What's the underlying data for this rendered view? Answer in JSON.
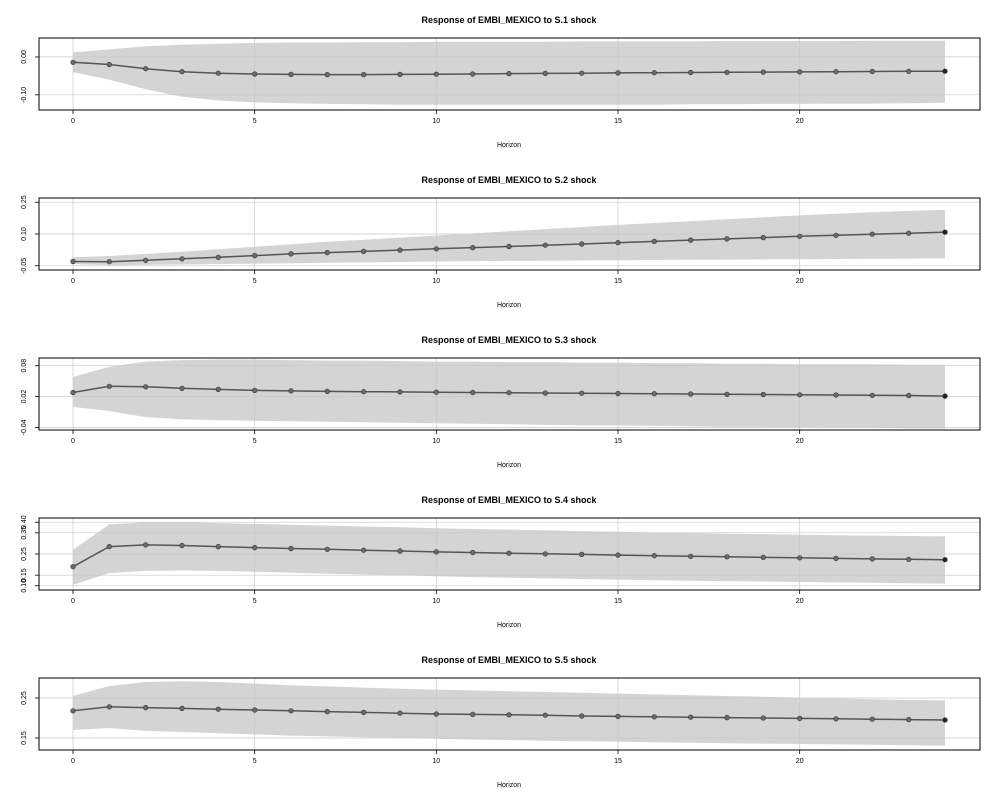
{
  "style": {
    "band_color": "#d4d4d4",
    "line_color": "#555555",
    "point_fill": "#6b6b6b",
    "last_point_fill": "#222222",
    "grid_color": "#c8c8c8",
    "frame_color": "#000000"
  },
  "chart_data": [
    {
      "type": "line",
      "title": "Response of EMBI_MEXICO to S.1 shock",
      "xlabel": "Horizon",
      "ylabel": "",
      "grid": true,
      "xlim": [
        0,
        24
      ],
      "ylim": [
        -0.14,
        0.05
      ],
      "xticks": [
        0,
        5,
        10,
        15,
        20
      ],
      "xtick_labels": [
        "0",
        "5",
        "10",
        "15",
        "20"
      ],
      "yticks": [
        -0.1,
        0.0
      ],
      "ytick_labels": [
        "-0.10",
        "0.00"
      ],
      "x": [
        0,
        1,
        2,
        3,
        4,
        5,
        6,
        7,
        8,
        9,
        10,
        11,
        12,
        13,
        14,
        15,
        16,
        17,
        18,
        19,
        20,
        21,
        22,
        23,
        24
      ],
      "series": [
        {
          "values": [
            -0.014,
            -0.02,
            -0.031,
            -0.039,
            -0.043,
            -0.045,
            -0.046,
            -0.0465,
            -0.0465,
            -0.046,
            -0.0455,
            -0.045,
            -0.044,
            -0.0435,
            -0.043,
            -0.042,
            -0.0415,
            -0.041,
            -0.0405,
            -0.04,
            -0.0395,
            -0.039,
            -0.0385,
            -0.038,
            -0.0375
          ],
          "lower": [
            -0.04,
            -0.06,
            -0.085,
            -0.105,
            -0.115,
            -0.12,
            -0.122,
            -0.124,
            -0.125,
            -0.126,
            -0.126,
            -0.126,
            -0.126,
            -0.126,
            -0.126,
            -0.126,
            -0.126,
            -0.125,
            -0.125,
            -0.124,
            -0.124,
            -0.123,
            -0.123,
            -0.122,
            -0.121
          ],
          "upper": [
            0.012,
            0.02,
            0.028,
            0.032,
            0.035,
            0.037,
            0.038,
            0.038,
            0.039,
            0.039,
            0.04,
            0.04,
            0.04,
            0.04,
            0.041,
            0.041,
            0.041,
            0.041,
            0.042,
            0.042,
            0.042,
            0.042,
            0.043,
            0.043,
            0.043
          ]
        }
      ]
    },
    {
      "type": "line",
      "title": "Response of EMBI_MEXICO to S.2 shock",
      "xlabel": "Horizon",
      "ylabel": "",
      "grid": true,
      "xlim": [
        0,
        24
      ],
      "ylim": [
        -0.07,
        0.27
      ],
      "xticks": [
        0,
        5,
        10,
        15,
        20
      ],
      "xtick_labels": [
        "0",
        "5",
        "10",
        "15",
        "20"
      ],
      "yticks": [
        -0.05,
        0.1,
        0.25
      ],
      "ytick_labels": [
        "-0.05",
        "0.10",
        "0.25"
      ],
      "x": [
        0,
        1,
        2,
        3,
        4,
        5,
        6,
        7,
        8,
        9,
        10,
        11,
        12,
        13,
        14,
        15,
        16,
        17,
        18,
        19,
        20,
        21,
        22,
        23,
        24
      ],
      "series": [
        {
          "values": [
            -0.03,
            -0.031,
            -0.024,
            -0.017,
            -0.01,
            -0.002,
            0.006,
            0.012,
            0.018,
            0.024,
            0.03,
            0.036,
            0.041,
            0.047,
            0.053,
            0.059,
            0.065,
            0.071,
            0.077,
            0.083,
            0.089,
            0.094,
            0.099,
            0.104,
            0.109
          ],
          "lower": [
            -0.042,
            -0.048,
            -0.046,
            -0.044,
            -0.042,
            -0.04,
            -0.038,
            -0.036,
            -0.034,
            -0.032,
            -0.03,
            -0.028,
            -0.027,
            -0.026,
            -0.025,
            -0.024,
            -0.023,
            -0.022,
            -0.021,
            -0.02,
            -0.019,
            -0.018,
            -0.017,
            -0.016,
            -0.015
          ],
          "upper": [
            -0.01,
            -0.004,
            0.006,
            0.016,
            0.028,
            0.04,
            0.052,
            0.063,
            0.073,
            0.083,
            0.093,
            0.103,
            0.113,
            0.123,
            0.133,
            0.143,
            0.152,
            0.161,
            0.17,
            0.179,
            0.188,
            0.196,
            0.203,
            0.209,
            0.214
          ]
        }
      ]
    },
    {
      "type": "line",
      "title": "Response of EMBI_MEXICO to S.3 shock",
      "xlabel": "Horizon",
      "ylabel": "",
      "grid": true,
      "xlim": [
        0,
        24
      ],
      "ylim": [
        -0.045,
        0.095
      ],
      "xticks": [
        0,
        5,
        10,
        15,
        20
      ],
      "xtick_labels": [
        "0",
        "5",
        "10",
        "15",
        "20"
      ],
      "yticks": [
        -0.04,
        0.02,
        0.08
      ],
      "ytick_labels": [
        "-0.04",
        "0.02",
        "0.08"
      ],
      "x": [
        0,
        1,
        2,
        3,
        4,
        5,
        6,
        7,
        8,
        9,
        10,
        11,
        12,
        13,
        14,
        15,
        16,
        17,
        18,
        19,
        20,
        21,
        22,
        23,
        24
      ],
      "series": [
        {
          "values": [
            0.028,
            0.04,
            0.039,
            0.036,
            0.034,
            0.032,
            0.031,
            0.03,
            0.0295,
            0.029,
            0.0285,
            0.028,
            0.0275,
            0.027,
            0.0265,
            0.026,
            0.0255,
            0.025,
            0.0245,
            0.024,
            0.0235,
            0.023,
            0.0225,
            0.022,
            0.021
          ],
          "lower": [
            0.0,
            -0.008,
            -0.02,
            -0.024,
            -0.026,
            -0.027,
            -0.028,
            -0.029,
            -0.03,
            -0.031,
            -0.032,
            -0.033,
            -0.034,
            -0.035,
            -0.036,
            -0.036,
            -0.037,
            -0.038,
            -0.039,
            -0.039,
            -0.04,
            -0.041,
            -0.041,
            -0.042,
            -0.042
          ],
          "upper": [
            0.058,
            0.078,
            0.088,
            0.091,
            0.092,
            0.092,
            0.091,
            0.09,
            0.09,
            0.089,
            0.088,
            0.088,
            0.087,
            0.087,
            0.086,
            0.086,
            0.085,
            0.085,
            0.084,
            0.084,
            0.083,
            0.083,
            0.083,
            0.082,
            0.082
          ]
        }
      ]
    },
    {
      "type": "line",
      "title": "Response of EMBI_MEXICO to S.4 shock",
      "xlabel": "Horizon",
      "ylabel": "",
      "grid": true,
      "xlim": [
        0,
        24
      ],
      "ylim": [
        0.08,
        0.42
      ],
      "xticks": [
        0,
        5,
        10,
        15,
        20
      ],
      "xtick_labels": [
        "0",
        "5",
        "10",
        "15",
        "20"
      ],
      "yticks": [
        0.1,
        0.15,
        0.25,
        0.35,
        0.4
      ],
      "ytick_labels": [
        "0.10",
        "0.15",
        "0.25",
        "0.35",
        "0.40"
      ],
      "x": [
        0,
        1,
        2,
        3,
        4,
        5,
        6,
        7,
        8,
        9,
        10,
        11,
        12,
        13,
        14,
        15,
        16,
        17,
        18,
        19,
        20,
        21,
        22,
        23,
        24
      ],
      "series": [
        {
          "values": [
            0.19,
            0.285,
            0.293,
            0.29,
            0.285,
            0.28,
            0.276,
            0.272,
            0.268,
            0.264,
            0.26,
            0.257,
            0.254,
            0.251,
            0.248,
            0.245,
            0.242,
            0.239,
            0.237,
            0.234,
            0.232,
            0.229,
            0.227,
            0.225,
            0.223
          ],
          "lower": [
            0.105,
            0.16,
            0.17,
            0.172,
            0.17,
            0.166,
            0.162,
            0.157,
            0.153,
            0.149,
            0.145,
            0.141,
            0.138,
            0.135,
            0.132,
            0.129,
            0.126,
            0.124,
            0.122,
            0.12,
            0.118,
            0.116,
            0.114,
            0.112,
            0.11
          ],
          "upper": [
            0.27,
            0.39,
            0.4,
            0.4,
            0.396,
            0.392,
            0.388,
            0.384,
            0.38,
            0.376,
            0.372,
            0.368,
            0.365,
            0.362,
            0.358,
            0.355,
            0.352,
            0.349,
            0.346,
            0.344,
            0.341,
            0.339,
            0.337,
            0.335,
            0.333
          ]
        }
      ]
    },
    {
      "type": "line",
      "title": "Response of EMBI_MEXICO to S.5 shock",
      "xlabel": "Horizon",
      "ylabel": "",
      "grid": true,
      "xlim": [
        0,
        24
      ],
      "ylim": [
        0.12,
        0.3
      ],
      "xticks": [
        0,
        5,
        10,
        15,
        20
      ],
      "xtick_labels": [
        "0",
        "5",
        "10",
        "15",
        "20"
      ],
      "yticks": [
        0.15,
        0.25
      ],
      "ytick_labels": [
        "0.15",
        "0.25"
      ],
      "x": [
        0,
        1,
        2,
        3,
        4,
        5,
        6,
        7,
        8,
        9,
        10,
        11,
        12,
        13,
        14,
        15,
        16,
        17,
        18,
        19,
        20,
        21,
        22,
        23,
        24
      ],
      "series": [
        {
          "values": [
            0.218,
            0.228,
            0.226,
            0.224,
            0.222,
            0.22,
            0.218,
            0.216,
            0.214,
            0.212,
            0.21,
            0.209,
            0.208,
            0.207,
            0.205,
            0.204,
            0.203,
            0.202,
            0.201,
            0.2,
            0.199,
            0.198,
            0.197,
            0.196,
            0.195
          ],
          "lower": [
            0.17,
            0.175,
            0.168,
            0.165,
            0.162,
            0.159,
            0.156,
            0.154,
            0.152,
            0.15,
            0.148,
            0.146,
            0.145,
            0.143,
            0.142,
            0.141,
            0.139,
            0.138,
            0.137,
            0.136,
            0.135,
            0.134,
            0.133,
            0.132,
            0.131
          ],
          "upper": [
            0.255,
            0.28,
            0.29,
            0.292,
            0.29,
            0.286,
            0.282,
            0.279,
            0.276,
            0.273,
            0.271,
            0.269,
            0.267,
            0.265,
            0.263,
            0.261,
            0.259,
            0.257,
            0.255,
            0.253,
            0.251,
            0.249,
            0.247,
            0.245,
            0.244
          ]
        }
      ]
    }
  ]
}
